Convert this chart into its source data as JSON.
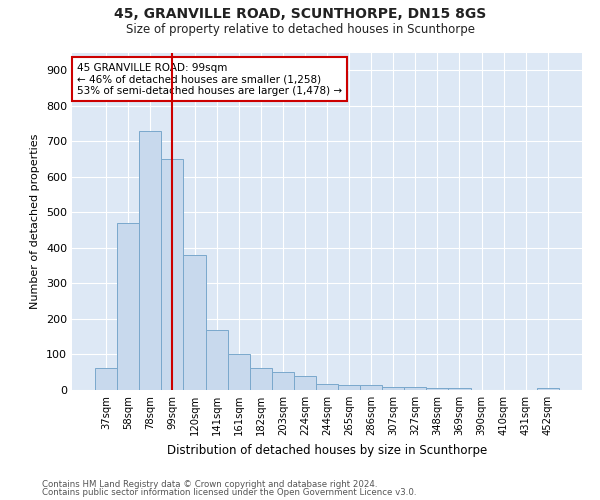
{
  "title": "45, GRANVILLE ROAD, SCUNTHORPE, DN15 8GS",
  "subtitle": "Size of property relative to detached houses in Scunthorpe",
  "xlabel": "Distribution of detached houses by size in Scunthorpe",
  "ylabel": "Number of detached properties",
  "bar_labels": [
    "37sqm",
    "58sqm",
    "78sqm",
    "99sqm",
    "120sqm",
    "141sqm",
    "161sqm",
    "182sqm",
    "203sqm",
    "224sqm",
    "244sqm",
    "265sqm",
    "286sqm",
    "307sqm",
    "327sqm",
    "348sqm",
    "369sqm",
    "390sqm",
    "410sqm",
    "431sqm",
    "452sqm"
  ],
  "bar_values": [
    62,
    470,
    730,
    650,
    380,
    170,
    100,
    62,
    50,
    40,
    18,
    15,
    15,
    8,
    8,
    6,
    5,
    0,
    0,
    0,
    5
  ],
  "bar_color": "#c8d9ed",
  "bar_edge_color": "#7aa8cc",
  "marker_index": 3,
  "marker_color": "#cc0000",
  "annotation_text": "45 GRANVILLE ROAD: 99sqm\n← 46% of detached houses are smaller (1,258)\n53% of semi-detached houses are larger (1,478) →",
  "annotation_box_color": "#ffffff",
  "annotation_box_edge": "#cc0000",
  "ylim": [
    0,
    950
  ],
  "yticks": [
    0,
    100,
    200,
    300,
    400,
    500,
    600,
    700,
    800,
    900
  ],
  "footer1": "Contains HM Land Registry data © Crown copyright and database right 2024.",
  "footer2": "Contains public sector information licensed under the Open Government Licence v3.0.",
  "fig_bg_color": "#ffffff",
  "plot_bg_color": "#dde8f5"
}
